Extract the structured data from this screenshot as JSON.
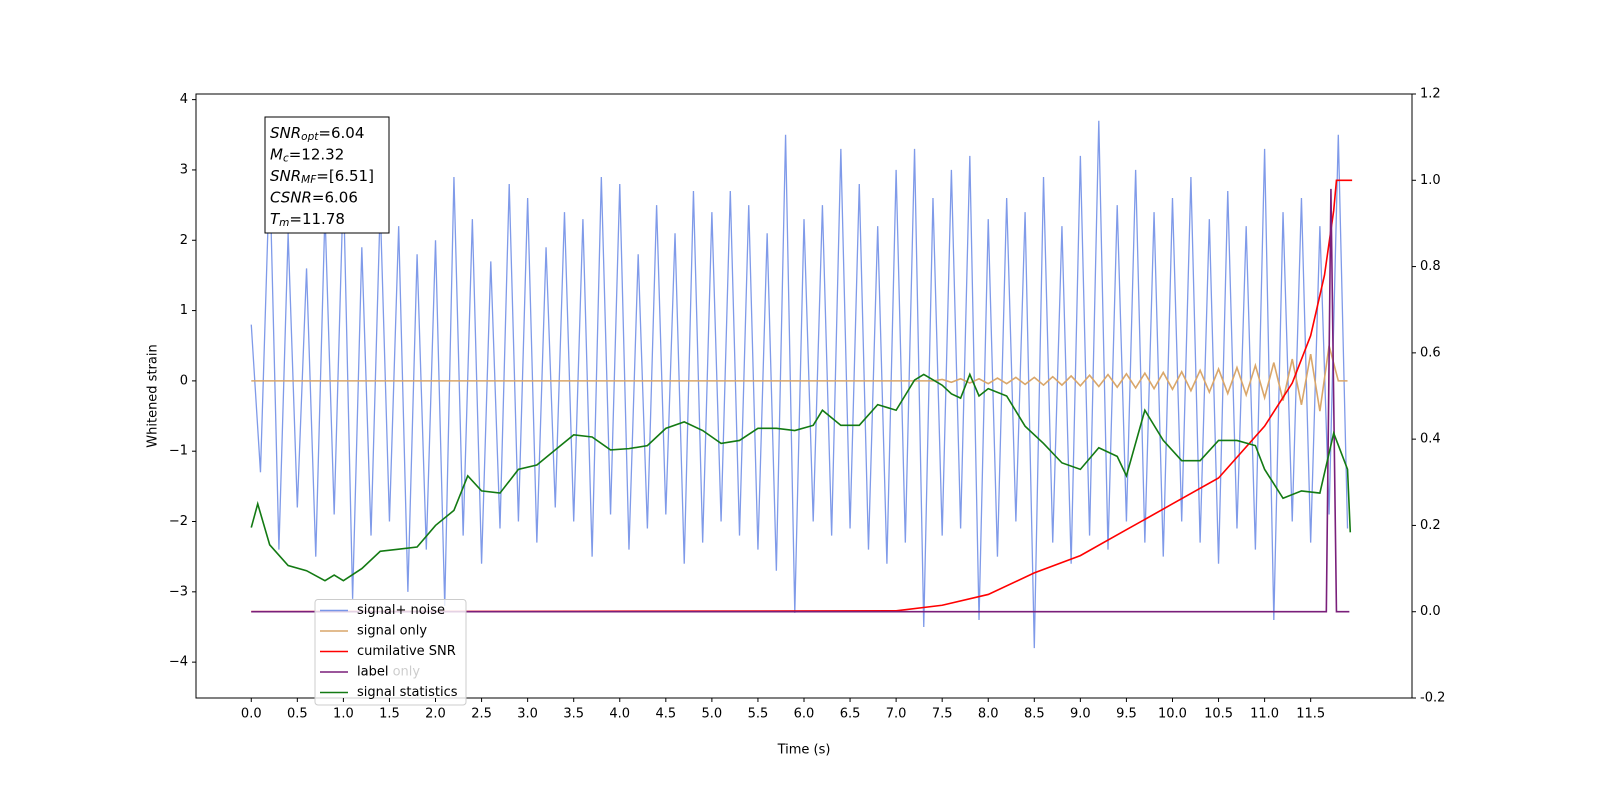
{
  "chart_data": {
    "type": "line",
    "xlabel": "Time (s)",
    "ylabel": "Whitened strain",
    "xlim": [
      -0.6,
      12.6
    ],
    "ylim": [
      -4.51,
      4.08
    ],
    "y2lim": [
      -0.2,
      1.2
    ],
    "xticks": [
      {
        "value": 0,
        "label": "0.0"
      },
      0.5,
      {
        "value": 1,
        "label": "1.0"
      },
      1.5,
      {
        "value": 2,
        "label": "2.0"
      },
      2.5,
      {
        "value": 3,
        "label": "3.0"
      },
      3.5,
      {
        "value": 4,
        "label": "4.0"
      },
      4.5,
      {
        "value": 5,
        "label": "5.0"
      },
      5.5,
      {
        "value": 6,
        "label": "6.0"
      },
      6.5,
      {
        "value": 7,
        "label": "7.0"
      },
      7.5,
      {
        "value": 8,
        "label": "8.0"
      },
      8.5,
      {
        "value": 9,
        "label": "9.0"
      },
      9.5,
      {
        "value": 10,
        "label": "10.0"
      },
      10.5,
      {
        "value": 11,
        "label": "11.0"
      },
      11.5
    ],
    "yticks": [
      {
        "value": -4,
        "label": "−4"
      },
      {
        "value": -3,
        "label": "−3"
      },
      {
        "value": -2,
        "label": "−2"
      },
      {
        "value": -1,
        "label": "−1"
      },
      0,
      1,
      2,
      3,
      4
    ],
    "y2ticks": [
      -0.2,
      {
        "value": 0,
        "label": "0.0"
      },
      0.2,
      0.4,
      0.6,
      0.8,
      {
        "value": 1,
        "label": "1.0"
      },
      1.2
    ],
    "annotations": [
      {
        "main": "SNR",
        "sub": "opt",
        "rest": "=6.04"
      },
      {
        "main": "M",
        "sub": "c",
        "rest": "=12.32"
      },
      {
        "main": "SNR",
        "sub": "MF",
        "rest": "=[6.51]"
      },
      {
        "main": "CSNR",
        "rest": "=6.06"
      },
      {
        "main": "T",
        "sub": "m",
        "rest": "=11.78"
      }
    ],
    "background_text": "label only",
    "legend": "lower left",
    "x": [
      0,
      0.1,
      0.2,
      0.3,
      0.4,
      0.5,
      0.6,
      0.7,
      0.8,
      0.9,
      1,
      1.1,
      1.2,
      1.3,
      1.4,
      1.5,
      1.6,
      1.7,
      1.8,
      1.9,
      2,
      2.1,
      2.2,
      2.3,
      2.4,
      2.5,
      2.6,
      2.7,
      2.8,
      2.9,
      3,
      3.1,
      3.2,
      3.3,
      3.4,
      3.5,
      3.6,
      3.7,
      3.8,
      3.9,
      4,
      4.1,
      4.2,
      4.3,
      4.4,
      4.5,
      4.6,
      4.7,
      4.8,
      4.9,
      5,
      5.1,
      5.2,
      5.3,
      5.4,
      5.5,
      5.6,
      5.7,
      5.8,
      5.9,
      6,
      6.1,
      6.2,
      6.3,
      6.4,
      6.5,
      6.6,
      6.7,
      6.8,
      6.9,
      7,
      7.1,
      7.2,
      7.3,
      7.4,
      7.5,
      7.6,
      7.7,
      7.8,
      7.9,
      8,
      8.1,
      8.2,
      8.3,
      8.4,
      8.5,
      8.6,
      8.7,
      8.8,
      8.9,
      9,
      9.1,
      9.2,
      9.3,
      9.4,
      9.5,
      9.6,
      9.7,
      9.8,
      9.9,
      10,
      10.1,
      10.2,
      10.3,
      10.4,
      10.5,
      10.6,
      10.7,
      10.8,
      10.9,
      11,
      11.1,
      11.2,
      11.3,
      11.4,
      11.5,
      11.6,
      11.7,
      11.8,
      11.9
    ],
    "series": [
      {
        "name": "signal+ noise",
        "color": "#7895e8",
        "values": [
          0.8,
          -1.3,
          3.0,
          -2.4,
          2.1,
          -1.8,
          1.6,
          -2.5,
          2.4,
          -1.9,
          2.8,
          -3.1,
          1.9,
          -2.2,
          2.5,
          -2.0,
          2.2,
          -3.0,
          1.8,
          -2.4,
          2.0,
          -3.2,
          2.9,
          -2.2,
          2.3,
          -2.6,
          1.7,
          -2.1,
          2.8,
          -2.0,
          2.6,
          -2.3,
          1.9,
          -1.8,
          2.4,
          -2.0,
          2.3,
          -2.5,
          2.9,
          -1.9,
          2.8,
          -2.4,
          1.8,
          -2.1,
          2.5,
          -1.9,
          2.1,
          -2.6,
          2.7,
          -2.3,
          2.4,
          -2.0,
          2.7,
          -2.2,
          2.5,
          -2.4,
          2.1,
          -2.7,
          3.5,
          -3.3,
          2.3,
          -2.0,
          2.5,
          -2.2,
          3.3,
          -2.1,
          2.8,
          -2.4,
          2.2,
          -2.6,
          3.0,
          -2.3,
          3.3,
          -3.5,
          2.6,
          -2.2,
          3.0,
          -2.1,
          3.2,
          -3.4,
          2.3,
          -2.5,
          2.6,
          -2.0,
          2.4,
          -3.8,
          2.9,
          -2.3,
          2.2,
          -2.6,
          3.2,
          -2.2,
          3.7,
          -2.4,
          2.5,
          -2.0,
          3.0,
          -2.3,
          2.4,
          -2.5,
          2.6,
          -2.0,
          2.9,
          -2.3,
          2.3,
          -2.6,
          2.7,
          -2.1,
          2.2,
          -2.4,
          3.3,
          -3.4,
          2.4,
          -2.0,
          2.6,
          -2.3,
          2.2,
          -1.9,
          3.5,
          -2.1
        ]
      },
      {
        "name": "signal only",
        "color": "#d9a66a",
        "values": [
          0,
          0,
          0,
          0,
          0,
          0,
          0,
          0,
          0,
          0,
          0,
          0,
          0,
          0,
          0,
          0,
          0,
          0,
          0,
          0,
          0,
          0,
          0,
          0,
          0,
          0,
          0,
          0,
          0,
          0,
          0,
          0,
          0,
          0,
          0,
          0,
          0,
          0,
          0,
          0,
          0,
          0,
          0,
          0,
          0,
          0,
          0,
          0,
          0,
          0,
          0,
          0,
          0,
          0,
          0,
          0,
          0,
          0,
          0,
          0,
          0,
          0,
          0,
          0,
          0,
          0,
          0,
          0,
          0,
          0,
          0,
          0,
          0,
          0,
          0,
          0.02,
          -0.02,
          0.03,
          -0.03,
          0.03,
          -0.04,
          0.04,
          -0.04,
          0.05,
          -0.05,
          0.05,
          -0.06,
          0.06,
          -0.06,
          0.07,
          -0.07,
          0.08,
          -0.08,
          0.09,
          -0.09,
          0.1,
          -0.1,
          0.11,
          -0.11,
          0.12,
          -0.12,
          0.13,
          -0.14,
          0.15,
          -0.16,
          0.17,
          -0.18,
          0.19,
          -0.2,
          0.22,
          -0.24,
          0.26,
          -0.28,
          0.31,
          -0.34,
          0.38,
          -0.43,
          0.5,
          0,
          0
        ]
      },
      {
        "name": "cumilative SNR",
        "color": "#ff0000",
        "axis": "y2",
        "x": [
          0,
          7.0,
          7.5,
          8.0,
          8.5,
          9.0,
          9.5,
          10.0,
          10.5,
          11.0,
          11.3,
          11.5,
          11.65,
          11.75,
          11.78,
          11.95
        ],
        "values": [
          0,
          0.002,
          0.015,
          0.04,
          0.09,
          0.13,
          0.19,
          0.25,
          0.31,
          0.43,
          0.53,
          0.64,
          0.78,
          0.93,
          1.0,
          1.0
        ]
      },
      {
        "name": "label",
        "color": "#7a1f7a",
        "axis": "y2",
        "x": [
          0,
          11.67,
          11.72,
          11.78,
          11.92
        ],
        "values": [
          0,
          0,
          0.98,
          0,
          0
        ]
      },
      {
        "name": "signal statistics",
        "color": "#137a13",
        "axis": "y2",
        "x": [
          0,
          0.07,
          0.2,
          0.4,
          0.6,
          0.8,
          0.9,
          1.0,
          1.2,
          1.4,
          1.6,
          1.8,
          2.0,
          2.2,
          2.35,
          2.5,
          2.7,
          2.9,
          3.1,
          3.3,
          3.5,
          3.7,
          3.9,
          4.1,
          4.3,
          4.5,
          4.7,
          4.9,
          5.1,
          5.3,
          5.5,
          5.7,
          5.9,
          6.1,
          6.2,
          6.4,
          6.6,
          6.8,
          7.0,
          7.2,
          7.3,
          7.5,
          7.6,
          7.7,
          7.8,
          7.9,
          8.0,
          8.2,
          8.4,
          8.6,
          8.8,
          9.0,
          9.2,
          9.4,
          9.5,
          9.7,
          9.9,
          10.1,
          10.3,
          10.5,
          10.7,
          10.9,
          11.0,
          11.2,
          11.4,
          11.6,
          11.75,
          11.9,
          11.93
        ],
        "values": [
          0.195,
          0.25,
          0.155,
          0.107,
          0.095,
          0.072,
          0.085,
          0.072,
          0.1,
          0.14,
          0.145,
          0.15,
          0.2,
          0.235,
          0.315,
          0.28,
          0.275,
          0.33,
          0.34,
          0.375,
          0.41,
          0.405,
          0.375,
          0.378,
          0.385,
          0.425,
          0.44,
          0.42,
          0.39,
          0.397,
          0.425,
          0.425,
          0.42,
          0.432,
          0.467,
          0.432,
          0.432,
          0.48,
          0.467,
          0.537,
          0.55,
          0.525,
          0.505,
          0.495,
          0.55,
          0.5,
          0.517,
          0.5,
          0.43,
          0.39,
          0.345,
          0.33,
          0.38,
          0.36,
          0.315,
          0.467,
          0.397,
          0.35,
          0.35,
          0.397,
          0.397,
          0.385,
          0.33,
          0.263,
          0.28,
          0.275,
          0.414,
          0.33,
          0.184
        ]
      }
    ]
  }
}
